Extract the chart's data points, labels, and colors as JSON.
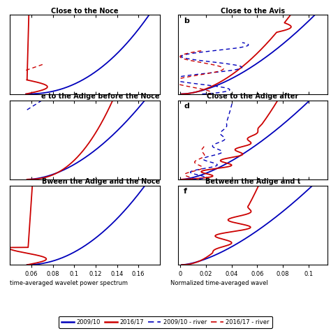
{
  "title_a": "Close to the Noce",
  "title_b": "Close to the Avis",
  "title_c": "to the Adige before the Noce",
  "title_d": "Close to the Adige after",
  "title_e": "ween the Adige and the Noce",
  "title_f": "Between the Adige and t",
  "xlabel_left": "time-averaged wavelet power spectrum",
  "xlabel_right": "Normalized time-averaged wavel",
  "xlim_left": [
    0.04,
    0.18
  ],
  "xlim_right": [
    -0.002,
    0.115
  ],
  "xticks_left": [
    0.06,
    0.08,
    0.1,
    0.12,
    0.14,
    0.16
  ],
  "xtick_labels_left": [
    "0.06",
    "0.08",
    "0.1",
    "0.12",
    "0.14",
    "0.16"
  ],
  "xticks_right": [
    0.0,
    0.02,
    0.04,
    0.06,
    0.08,
    0.1
  ],
  "xtick_labels_right": [
    "0",
    "0.02",
    "0.04",
    "0.06",
    "0.08",
    "0.1"
  ],
  "colors": {
    "blue_2009": "#0000bb",
    "red_2016": "#cc0000"
  },
  "label_b": "b",
  "label_d": "d",
  "label_f": "f"
}
